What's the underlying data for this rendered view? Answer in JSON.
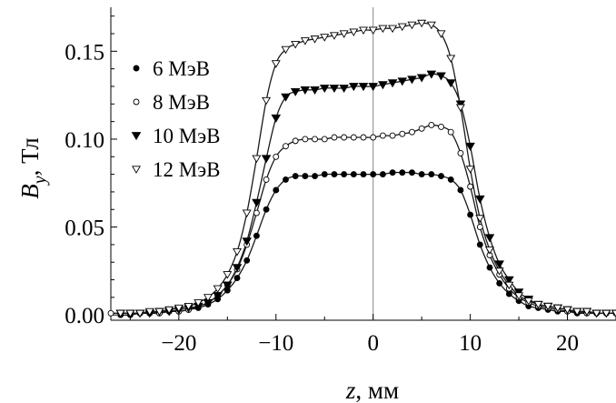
{
  "chart_data": {
    "type": "scatter",
    "xlabel": "z, мм",
    "ylabel": "B_y, Тл",
    "xlim": [
      -27,
      25
    ],
    "ylim": [
      -0.003,
      0.175
    ],
    "x_ticks": [
      -20,
      -10,
      0,
      10,
      20
    ],
    "x_tick_labels": [
      "−20",
      "−10",
      "0",
      "10",
      "20"
    ],
    "y_ticks": [
      0.0,
      0.05,
      0.1,
      0.15
    ],
    "y_tick_labels": [
      "0.00",
      "0.05",
      "0.10",
      "0.15"
    ],
    "grid": false,
    "legend_placement": "upper-left",
    "series": [
      {
        "name": "6 МэВ",
        "marker": "filled-circle",
        "x": [
          -26,
          -25,
          -24,
          -23,
          -22,
          -21,
          -20,
          -19,
          -18,
          -17,
          -16,
          -15,
          -14,
          -13,
          -12,
          -11,
          -10,
          -9,
          -8,
          -7,
          -6,
          -5,
          -4,
          -3,
          -2,
          -1,
          0,
          1,
          2,
          3,
          4,
          5,
          6,
          7,
          8,
          9,
          10,
          11,
          12,
          13,
          14,
          15,
          16,
          17,
          18,
          19,
          20,
          21,
          22,
          23,
          24,
          25
        ],
        "y": [
          0.0,
          0.0,
          0.001,
          0.001,
          0.001,
          0.002,
          0.002,
          0.003,
          0.004,
          0.006,
          0.009,
          0.014,
          0.021,
          0.031,
          0.045,
          0.06,
          0.071,
          0.077,
          0.079,
          0.079,
          0.079,
          0.08,
          0.08,
          0.08,
          0.08,
          0.08,
          0.08,
          0.08,
          0.081,
          0.081,
          0.081,
          0.08,
          0.08,
          0.079,
          0.077,
          0.071,
          0.057,
          0.04,
          0.027,
          0.018,
          0.012,
          0.008,
          0.005,
          0.004,
          0.003,
          0.002,
          0.002,
          0.001,
          0.001,
          0.001,
          0.001,
          0.001
        ]
      },
      {
        "name": "8 МэВ",
        "marker": "open-circle",
        "x": [
          -27,
          -26,
          -25,
          -24,
          -23,
          -22,
          -21,
          -20,
          -19,
          -18,
          -17,
          -16,
          -15,
          -14,
          -13,
          -12,
          -11,
          -10,
          -9,
          -8,
          -7,
          -6,
          -5,
          -4,
          -3,
          -2,
          -1,
          0,
          1,
          2,
          3,
          4,
          5,
          6,
          7,
          8,
          9,
          10,
          11,
          12,
          13,
          14,
          15,
          16,
          17,
          18,
          19,
          20,
          21,
          22,
          23,
          24,
          25
        ],
        "y": [
          0.001,
          0.001,
          0.001,
          0.001,
          0.001,
          0.001,
          0.002,
          0.002,
          0.003,
          0.005,
          0.007,
          0.011,
          0.017,
          0.026,
          0.04,
          0.058,
          0.077,
          0.09,
          0.096,
          0.099,
          0.1,
          0.1,
          0.1,
          0.101,
          0.101,
          0.101,
          0.101,
          0.101,
          0.102,
          0.102,
          0.103,
          0.104,
          0.106,
          0.108,
          0.107,
          0.104,
          0.092,
          0.073,
          0.05,
          0.034,
          0.023,
          0.015,
          0.01,
          0.007,
          0.005,
          0.004,
          0.003,
          0.002,
          0.002,
          0.001,
          0.001,
          0.001,
          0.001
        ]
      },
      {
        "name": "10 МэВ",
        "marker": "filled-triangle-down",
        "x": [
          -26,
          -25,
          -24,
          -23,
          -22,
          -21,
          -20,
          -19,
          -18,
          -17,
          -16,
          -15,
          -14,
          -13,
          -12,
          -11,
          -10,
          -9,
          -8,
          -7,
          -6,
          -5,
          -4,
          -3,
          -2,
          -1,
          0,
          1,
          2,
          3,
          4,
          5,
          6,
          7,
          8,
          9,
          10,
          11,
          12,
          13,
          14,
          15,
          16,
          17,
          18,
          19,
          20,
          21,
          22,
          23,
          24,
          25
        ],
        "y": [
          0.001,
          0.001,
          0.001,
          0.001,
          0.002,
          0.002,
          0.003,
          0.004,
          0.005,
          0.007,
          0.011,
          0.017,
          0.027,
          0.042,
          0.064,
          0.089,
          0.112,
          0.124,
          0.127,
          0.128,
          0.128,
          0.129,
          0.129,
          0.129,
          0.13,
          0.13,
          0.13,
          0.131,
          0.132,
          0.133,
          0.134,
          0.135,
          0.137,
          0.136,
          0.132,
          0.12,
          0.096,
          0.066,
          0.044,
          0.029,
          0.02,
          0.013,
          0.009,
          0.006,
          0.005,
          0.004,
          0.003,
          0.002,
          0.002,
          0.001,
          0.001,
          0.001
        ]
      },
      {
        "name": "12 МэВ",
        "marker": "open-triangle-down",
        "x": [
          -26,
          -25,
          -24,
          -23,
          -22,
          -21,
          -20,
          -19,
          -18,
          -17,
          -16,
          -15,
          -14,
          -13,
          -12,
          -11,
          -10,
          -9,
          -8,
          -7,
          -6,
          -5,
          -4,
          -3,
          -2,
          -1,
          0,
          1,
          2,
          3,
          4,
          5,
          6,
          7,
          8,
          9,
          10,
          11,
          12,
          13,
          14,
          15,
          16,
          17,
          18,
          19,
          20,
          21,
          22,
          23,
          24,
          25
        ],
        "y": [
          0.001,
          0.001,
          0.001,
          0.002,
          0.002,
          0.003,
          0.004,
          0.005,
          0.007,
          0.01,
          0.015,
          0.023,
          0.036,
          0.058,
          0.089,
          0.122,
          0.143,
          0.151,
          0.154,
          0.156,
          0.157,
          0.158,
          0.159,
          0.16,
          0.161,
          0.162,
          0.162,
          0.163,
          0.163,
          0.164,
          0.165,
          0.166,
          0.165,
          0.16,
          0.146,
          0.118,
          0.083,
          0.055,
          0.037,
          0.025,
          0.017,
          0.011,
          0.008,
          0.006,
          0.005,
          0.004,
          0.003,
          0.002,
          0.002,
          0.001,
          0.001,
          0.001
        ]
      }
    ]
  }
}
